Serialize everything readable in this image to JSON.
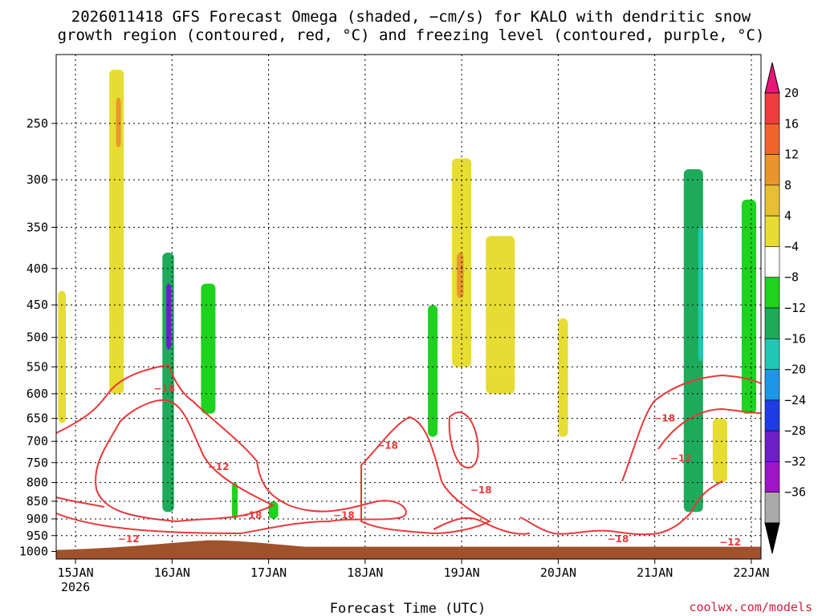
{
  "title_line1": "2026011418 GFS Forecast Omega (shaded, −cm/s) for KALO with dendritic snow",
  "title_line2": "growth region (contoured, red, °C) and freezing level (contoured, purple, °C)",
  "credit": "coolwx.com/models",
  "chart_data": {
    "type": "heatmap",
    "title": "2026011418 GFS Forecast Omega (shaded, −cm/s) for KALO with dendritic snow growth region (contoured, red, °C) and freezing level (contoured, purple, °C)",
    "xlabel": "Forecast Time (UTC)",
    "ylabel": "",
    "x_ticks": [
      {
        "label": "15JAN",
        "sublabel": "2026",
        "day": 15
      },
      {
        "label": "16JAN",
        "sublabel": "",
        "day": 16
      },
      {
        "label": "17JAN",
        "sublabel": "",
        "day": 17
      },
      {
        "label": "18JAN",
        "sublabel": "",
        "day": 18
      },
      {
        "label": "19JAN",
        "sublabel": "",
        "day": 19
      },
      {
        "label": "20JAN",
        "sublabel": "",
        "day": 20
      },
      {
        "label": "21JAN",
        "sublabel": "",
        "day": 21
      },
      {
        "label": "22JAN",
        "sublabel": "",
        "day": 22
      }
    ],
    "xlim": [
      14.8,
      22.1
    ],
    "y_ticks": [
      250,
      300,
      350,
      400,
      450,
      500,
      550,
      600,
      650,
      700,
      750,
      800,
      850,
      900,
      950,
      1000
    ],
    "ylim": [
      1025,
      200
    ],
    "y_scale": "log-pressure",
    "grid": true,
    "colorbar": {
      "labels": [
        "20",
        "16",
        "12",
        "8",
        "4",
        "−4",
        "−8",
        "−12",
        "−16",
        "−20",
        "−24",
        "−28",
        "−32",
        "−36"
      ],
      "colors": [
        "#e8177a",
        "#f03c3c",
        "#f0642a",
        "#e8962a",
        "#e6c032",
        "#e6dc32",
        "#ffffff",
        "#1ed21e",
        "#1eaa5a",
        "#1ec8b4",
        "#1e96e6",
        "#1e3ce6",
        "#6e1ec8",
        "#a014c8",
        "#aaaaaa",
        "#000000"
      ]
    },
    "ground_color": "#a0522d",
    "omega_regions": [
      {
        "x": [
          15.35,
          15.5
        ],
        "p": [
          210,
          600
        ],
        "value": 6
      },
      {
        "x": [
          15.42,
          15.47
        ],
        "p": [
          230,
          270
        ],
        "value": 10
      },
      {
        "x": [
          14.82,
          14.9
        ],
        "p": [
          430,
          660
        ],
        "value": 4
      },
      {
        "x": [
          15.9,
          16.02
        ],
        "p": [
          380,
          880
        ],
        "value": -8
      },
      {
        "x": [
          15.94,
          15.99
        ],
        "p": [
          420,
          520
        ],
        "value": -24
      },
      {
        "x": [
          16.3,
          16.45
        ],
        "p": [
          420,
          640
        ],
        "value": -6
      },
      {
        "x": [
          16.62,
          16.68
        ],
        "p": [
          800,
          900
        ],
        "value": -6
      },
      {
        "x": [
          17.0,
          17.1
        ],
        "p": [
          850,
          900
        ],
        "value": -6
      },
      {
        "x": [
          18.65,
          18.75
        ],
        "p": [
          450,
          690
        ],
        "value": -6
      },
      {
        "x": [
          18.9,
          19.1
        ],
        "p": [
          280,
          550
        ],
        "value": 6
      },
      {
        "x": [
          18.95,
          19.02
        ],
        "p": [
          380,
          440
        ],
        "value": 10
      },
      {
        "x": [
          19.25,
          19.55
        ],
        "p": [
          360,
          600
        ],
        "value": 5
      },
      {
        "x": [
          20.0,
          20.1
        ],
        "p": [
          470,
          690
        ],
        "value": 5
      },
      {
        "x": [
          21.3,
          21.5
        ],
        "p": [
          290,
          880
        ],
        "value": -8
      },
      {
        "x": [
          21.45,
          21.5
        ],
        "p": [
          350,
          540
        ],
        "value": -14
      },
      {
        "x": [
          21.6,
          21.75
        ],
        "p": [
          650,
          800
        ],
        "value": 5
      },
      {
        "x": [
          21.9,
          22.05
        ],
        "p": [
          320,
          640
        ],
        "value": -7
      }
    ],
    "contour_labels": [
      {
        "text": "−18",
        "day": 15.92,
        "p": 590
      },
      {
        "text": "−12",
        "day": 16.48,
        "p": 760
      },
      {
        "text": "−18",
        "day": 16.82,
        "p": 890
      },
      {
        "text": "−18",
        "day": 17.78,
        "p": 890
      },
      {
        "text": "−12",
        "day": 15.55,
        "p": 960
      },
      {
        "text": "−18",
        "day": 18.23,
        "p": 710
      },
      {
        "text": "−18",
        "day": 19.2,
        "p": 820
      },
      {
        "text": "−18",
        "day": 20.62,
        "p": 960
      },
      {
        "text": "−18",
        "day": 21.1,
        "p": 650
      },
      {
        "text": "−12",
        "day": 21.27,
        "p": 740
      },
      {
        "text": "−12",
        "day": 21.78,
        "p": 970
      }
    ]
  }
}
